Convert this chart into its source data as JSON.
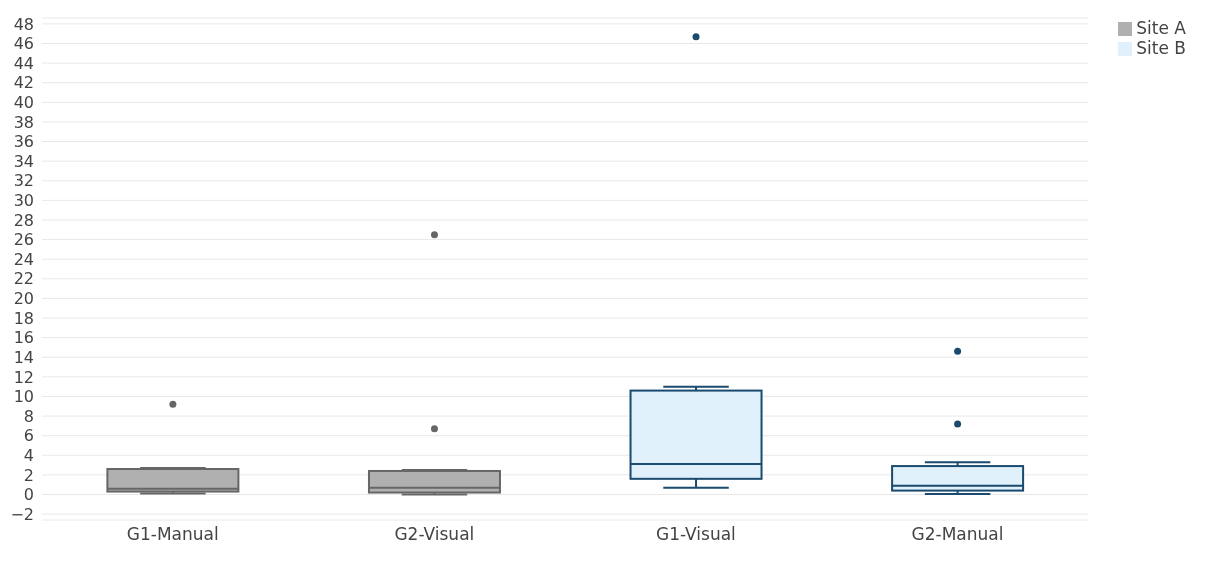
{
  "chart_data": {
    "type": "box",
    "categories": [
      "G1-Manual",
      "G2-Visual",
      "G1-Visual",
      "G2-Manual"
    ],
    "series": [
      {
        "name": "Site A",
        "color": "#b0b0b0",
        "boxes": [
          {
            "low": 0.1,
            "q1": 0.3,
            "median": 0.6,
            "q3": 2.6,
            "high": 2.7,
            "outliers": [
              9.2
            ]
          },
          {
            "low": 0,
            "q1": 0.2,
            "median": 0.7,
            "q3": 2.4,
            "high": 2.5,
            "outliers": [
              6.7,
              26.5
            ]
          },
          null,
          null
        ]
      },
      {
        "name": "Site B",
        "color": "#e1f1fc",
        "boxes": [
          null,
          null,
          {
            "low": 0.7,
            "q1": 1.6,
            "median": 3.1,
            "q3": 10.6,
            "high": 11,
            "outliers": [
              46.7
            ]
          },
          {
            "low": 0.05,
            "q1": 0.4,
            "median": 0.9,
            "q3": 2.9,
            "high": 3.3,
            "outliers": [
              7.2,
              14.6
            ]
          }
        ]
      }
    ],
    "ylim": [
      -2.6,
      48.6
    ],
    "yticks": [
      {
        "value": -2,
        "label": "−2"
      },
      0,
      2,
      4,
      6,
      8,
      10,
      12,
      14,
      16,
      18,
      20,
      22,
      24,
      26,
      28,
      30,
      32,
      34,
      36,
      38,
      40,
      42,
      44,
      46,
      48
    ],
    "grid": "y",
    "legend": "top right"
  }
}
